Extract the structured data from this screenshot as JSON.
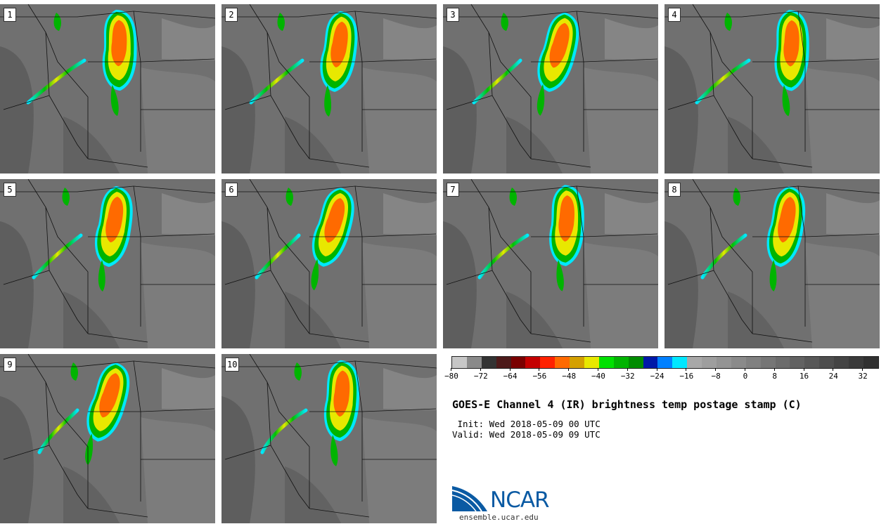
{
  "panels": [
    {
      "label": "1"
    },
    {
      "label": "2"
    },
    {
      "label": "3"
    },
    {
      "label": "4"
    },
    {
      "label": "5"
    },
    {
      "label": "6"
    },
    {
      "label": "7"
    },
    {
      "label": "8"
    },
    {
      "label": "9"
    },
    {
      "label": "10"
    }
  ],
  "colorbar": {
    "colors": [
      "#c7c7c7",
      "#8a8a8a",
      "#333333",
      "#4d1a1a",
      "#7a0000",
      "#c40000",
      "#ff2200",
      "#ff6a00",
      "#d4a000",
      "#e8e800",
      "#00e000",
      "#00b400",
      "#008c00",
      "#0018a8",
      "#0080ff",
      "#00e8ff",
      "#a8a8a8",
      "#9e9e9e",
      "#949494",
      "#8a8a8a",
      "#808080",
      "#767676",
      "#6c6c6c",
      "#626262",
      "#585858",
      "#4e4e4e",
      "#444444",
      "#3a3a3a",
      "#303030"
    ],
    "tick_labels": [
      "−80",
      "−72",
      "−64",
      "−56",
      "−48",
      "−40",
      "−32",
      "−24",
      "−16",
      "−8",
      "0",
      "8",
      "16",
      "24",
      "32"
    ]
  },
  "title": "GOES-E Channel 4 (IR) brightness temp postage stamp (C)",
  "init_line": " Init: Wed 2018-05-09 00 UTC",
  "valid_line": "Valid: Wed 2018-05-09 09 UTC",
  "logo": {
    "text": "NCAR",
    "url": "ensemble.ucar.edu"
  }
}
